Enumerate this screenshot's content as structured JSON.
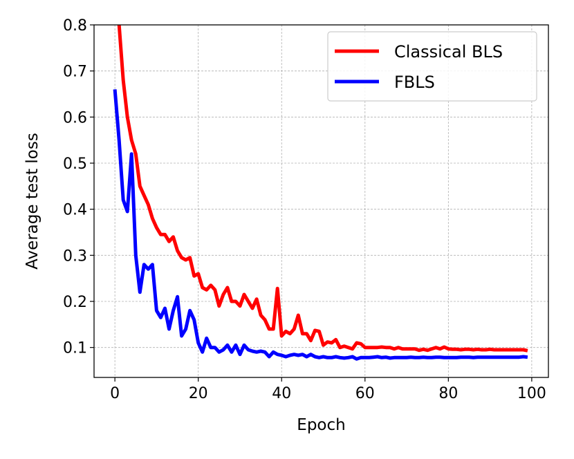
{
  "chart_data": {
    "type": "line",
    "title": "",
    "xlabel": "Epoch",
    "ylabel": "Average test loss",
    "xlim": [
      -5,
      104
    ],
    "ylim": [
      0.035,
      0.8
    ],
    "xticks": [
      0,
      20,
      40,
      60,
      80,
      100
    ],
    "yticks": [
      0.1,
      0.2,
      0.3,
      0.4,
      0.5,
      0.6,
      0.7,
      0.8
    ],
    "xtick_labels": [
      "0",
      "20",
      "40",
      "60",
      "80",
      "100"
    ],
    "ytick_labels": [
      "0.1",
      "0.2",
      "0.3",
      "0.4",
      "0.5",
      "0.6",
      "0.7",
      "0.8"
    ],
    "grid": true,
    "legend_position": "top-right",
    "series": [
      {
        "name": "Classical BLS",
        "color": "#ff0000",
        "x": [
          1,
          2,
          3,
          4,
          5,
          6,
          7,
          8,
          9,
          10,
          11,
          12,
          13,
          14,
          15,
          16,
          17,
          18,
          19,
          20,
          21,
          22,
          23,
          24,
          25,
          26,
          27,
          28,
          29,
          30,
          31,
          32,
          33,
          34,
          35,
          36,
          37,
          38,
          39,
          40,
          41,
          42,
          43,
          44,
          45,
          46,
          47,
          48,
          49,
          50,
          51,
          52,
          53,
          54,
          55,
          56,
          57,
          58,
          59,
          60,
          61,
          62,
          63,
          64,
          65,
          66,
          67,
          68,
          69,
          70,
          71,
          72,
          73,
          74,
          75,
          76,
          77,
          78,
          79,
          80,
          81,
          82,
          83,
          84,
          85,
          86,
          87,
          88,
          89,
          90,
          91,
          92,
          93,
          94,
          95,
          96,
          97,
          98,
          99
        ],
        "y": [
          0.8,
          0.68,
          0.6,
          0.55,
          0.52,
          0.45,
          0.43,
          0.41,
          0.38,
          0.36,
          0.345,
          0.345,
          0.33,
          0.34,
          0.31,
          0.295,
          0.29,
          0.295,
          0.255,
          0.26,
          0.23,
          0.225,
          0.235,
          0.225,
          0.19,
          0.215,
          0.23,
          0.2,
          0.2,
          0.19,
          0.215,
          0.2,
          0.185,
          0.205,
          0.17,
          0.16,
          0.14,
          0.14,
          0.228,
          0.125,
          0.135,
          0.13,
          0.14,
          0.17,
          0.13,
          0.13,
          0.115,
          0.137,
          0.135,
          0.105,
          0.112,
          0.11,
          0.117,
          0.1,
          0.103,
          0.1,
          0.097,
          0.11,
          0.108,
          0.1,
          0.1,
          0.1,
          0.1,
          0.101,
          0.1,
          0.1,
          0.097,
          0.1,
          0.097,
          0.097,
          0.097,
          0.097,
          0.094,
          0.096,
          0.094,
          0.097,
          0.1,
          0.097,
          0.101,
          0.097,
          0.096,
          0.096,
          0.095,
          0.096,
          0.096,
          0.095,
          0.096,
          0.095,
          0.095,
          0.096,
          0.095,
          0.095,
          0.095,
          0.095,
          0.095,
          0.095,
          0.095,
          0.095,
          0.093
        ]
      },
      {
        "name": "FBLS",
        "color": "#0000ff",
        "x": [
          0,
          1,
          2,
          3,
          4,
          5,
          6,
          7,
          8,
          9,
          10,
          11,
          12,
          13,
          14,
          15,
          16,
          17,
          18,
          19,
          20,
          21,
          22,
          23,
          24,
          25,
          26,
          27,
          28,
          29,
          30,
          31,
          32,
          33,
          34,
          35,
          36,
          37,
          38,
          39,
          40,
          41,
          42,
          43,
          44,
          45,
          46,
          47,
          48,
          49,
          50,
          51,
          52,
          53,
          54,
          55,
          56,
          57,
          58,
          59,
          60,
          61,
          62,
          63,
          64,
          65,
          66,
          67,
          68,
          69,
          70,
          71,
          72,
          73,
          74,
          75,
          76,
          77,
          78,
          79,
          80,
          81,
          82,
          83,
          84,
          85,
          86,
          87,
          88,
          89,
          90,
          91,
          92,
          93,
          94,
          95,
          96,
          97,
          98,
          99
        ],
        "y": [
          0.66,
          0.55,
          0.42,
          0.395,
          0.52,
          0.3,
          0.22,
          0.28,
          0.27,
          0.28,
          0.18,
          0.165,
          0.185,
          0.14,
          0.18,
          0.21,
          0.125,
          0.14,
          0.18,
          0.16,
          0.11,
          0.09,
          0.12,
          0.1,
          0.1,
          0.09,
          0.095,
          0.105,
          0.09,
          0.105,
          0.085,
          0.105,
          0.095,
          0.092,
          0.09,
          0.092,
          0.09,
          0.08,
          0.09,
          0.085,
          0.083,
          0.08,
          0.083,
          0.085,
          0.083,
          0.085,
          0.08,
          0.085,
          0.08,
          0.078,
          0.08,
          0.078,
          0.078,
          0.08,
          0.078,
          0.077,
          0.078,
          0.08,
          0.075,
          0.078,
          0.078,
          0.078,
          0.079,
          0.08,
          0.078,
          0.079,
          0.077,
          0.078,
          0.078,
          0.078,
          0.078,
          0.079,
          0.078,
          0.078,
          0.079,
          0.078,
          0.078,
          0.079,
          0.079,
          0.078,
          0.078,
          0.078,
          0.078,
          0.079,
          0.079,
          0.079,
          0.078,
          0.079,
          0.079,
          0.079,
          0.079,
          0.079,
          0.079,
          0.079,
          0.079,
          0.079,
          0.079,
          0.079,
          0.08,
          0.079
        ]
      }
    ]
  }
}
